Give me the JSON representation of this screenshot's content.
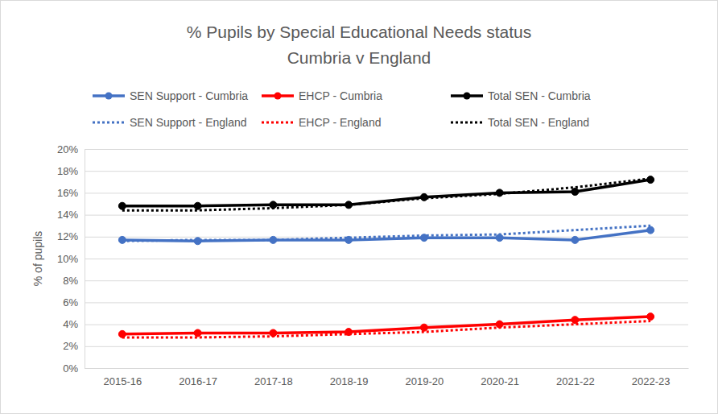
{
  "chart_data": {
    "type": "line",
    "title": "% Pupils by Special Educational Needs status",
    "subtitle": "Cumbria v England",
    "y_label": "% of pupils",
    "categories": [
      "2015-16",
      "2016-17",
      "2017-18",
      "2018-19",
      "2019-20",
      "2020-21",
      "2021-22",
      "2022-23"
    ],
    "series": [
      {
        "name": "SEN Support - Cumbria",
        "color": "#4472c4",
        "marker": "circle",
        "line_style": "solid",
        "values": [
          11.7,
          11.6,
          11.7,
          11.7,
          11.9,
          11.9,
          11.7,
          12.6
        ]
      },
      {
        "name": "EHCP - Cumbria",
        "color": "#ff0000",
        "marker": "circle",
        "line_style": "solid",
        "values": [
          3.1,
          3.2,
          3.2,
          3.3,
          3.7,
          4.0,
          4.4,
          4.7
        ]
      },
      {
        "name": "Total SEN - Cumbria",
        "color": "#000000",
        "marker": "circle",
        "line_style": "solid",
        "values": [
          14.8,
          14.8,
          14.9,
          14.9,
          15.6,
          16.0,
          16.1,
          17.2
        ]
      },
      {
        "name": "SEN Support - England",
        "color": "#4472c4",
        "marker": "none",
        "line_style": "dotted",
        "values": [
          11.6,
          11.7,
          11.7,
          11.9,
          12.1,
          12.2,
          12.6,
          13.0
        ]
      },
      {
        "name": "EHCP - England",
        "color": "#ff0000",
        "marker": "none",
        "line_style": "dotted",
        "values": [
          2.8,
          2.8,
          2.9,
          3.1,
          3.3,
          3.7,
          4.0,
          4.3
        ]
      },
      {
        "name": "Total SEN - England",
        "color": "#000000",
        "marker": "none",
        "line_style": "dotted",
        "values": [
          14.4,
          14.4,
          14.6,
          14.9,
          15.5,
          15.9,
          16.5,
          17.3
        ]
      }
    ],
    "ylim": [
      0,
      20
    ],
    "yticks": [
      {
        "value": 0,
        "label": "0%"
      },
      {
        "value": 2,
        "label": "2%"
      },
      {
        "value": 4,
        "label": "4%"
      },
      {
        "value": 6,
        "label": "6%"
      },
      {
        "value": 8,
        "label": "8%"
      },
      {
        "value": 10,
        "label": "10%"
      },
      {
        "value": 12,
        "label": "12%"
      },
      {
        "value": 14,
        "label": "14%"
      },
      {
        "value": 16,
        "label": "16%"
      },
      {
        "value": 18,
        "label": "18%"
      },
      {
        "value": 20,
        "label": "20%"
      }
    ],
    "grid": true,
    "legend": "top"
  }
}
